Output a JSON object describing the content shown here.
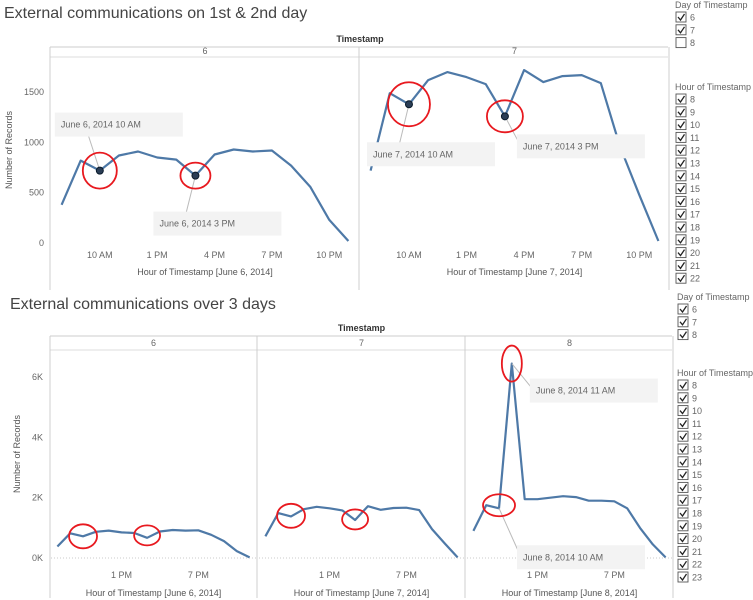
{
  "chart_data": [
    {
      "type": "line",
      "title": "External communications on 1st & 2nd day",
      "column_header": "Timestamp",
      "ylabel": "Number of Records",
      "ylim": [
        0,
        1850
      ],
      "yticks": [
        0,
        500,
        1000,
        1500
      ],
      "ytick_labels": [
        "0",
        "500",
        "1000",
        "1500"
      ],
      "panels": [
        {
          "label": "6",
          "xlabel": "Hour of Timestamp [June 6, 2014]",
          "x": [
            8,
            9,
            10,
            11,
            12,
            13,
            14,
            15,
            16,
            17,
            18,
            19,
            20,
            21,
            22,
            23
          ],
          "values": [
            380,
            820,
            720,
            870,
            910,
            850,
            830,
            670,
            880,
            930,
            910,
            920,
            770,
            560,
            230,
            20
          ],
          "xticks": [
            10,
            13,
            16,
            19,
            22
          ],
          "xtick_labels": [
            "10 AM",
            "1 PM",
            "4 PM",
            "7 PM",
            "10 PM"
          ],
          "annotations": [
            {
              "text": "June 6, 2014 10 AM",
              "x": 10,
              "y": 720
            },
            {
              "text": "June 6, 2014 3 PM",
              "x": 15,
              "y": 670
            }
          ]
        },
        {
          "label": "7",
          "xlabel": "Hour of Timestamp [June 7, 2014]",
          "x": [
            8,
            9,
            10,
            11,
            12,
            13,
            14,
            15,
            16,
            17,
            18,
            19,
            20,
            21,
            22,
            23
          ],
          "values": [
            720,
            1490,
            1380,
            1620,
            1700,
            1650,
            1580,
            1260,
            1720,
            1600,
            1660,
            1670,
            1590,
            960,
            480,
            20
          ],
          "xticks": [
            10,
            13,
            16,
            19,
            22
          ],
          "xtick_labels": [
            "10 AM",
            "1 PM",
            "4 PM",
            "7 PM",
            "10 PM"
          ],
          "annotations": [
            {
              "text": "June 7, 2014 10 AM",
              "x": 10,
              "y": 1380
            },
            {
              "text": "June 7, 2014 3 PM",
              "x": 15,
              "y": 1260
            }
          ]
        }
      ],
      "filters": [
        {
          "title": "Day of Timestamp",
          "items": [
            {
              "label": "6",
              "checked": true
            },
            {
              "label": "7",
              "checked": true
            },
            {
              "label": "8",
              "checked": false
            }
          ]
        },
        {
          "title": "Hour of Timestamp",
          "items": [
            {
              "label": "8",
              "checked": true
            },
            {
              "label": "9",
              "checked": true
            },
            {
              "label": "10",
              "checked": true
            },
            {
              "label": "11",
              "checked": true
            },
            {
              "label": "12",
              "checked": true
            },
            {
              "label": "13",
              "checked": true
            },
            {
              "label": "14",
              "checked": true
            },
            {
              "label": "15",
              "checked": true
            },
            {
              "label": "16",
              "checked": true
            },
            {
              "label": "17",
              "checked": true
            },
            {
              "label": "18",
              "checked": true
            },
            {
              "label": "19",
              "checked": true
            },
            {
              "label": "20",
              "checked": true
            },
            {
              "label": "21",
              "checked": true
            },
            {
              "label": "22",
              "checked": true
            }
          ]
        }
      ]
    },
    {
      "type": "line",
      "title": "External communications over 3 days",
      "column_header": "Timestamp",
      "ylabel": "Number of Records",
      "ylim": [
        0,
        6900
      ],
      "yticks": [
        0,
        2000,
        4000,
        6000
      ],
      "ytick_labels": [
        "0K",
        "2K",
        "4K",
        "6K"
      ],
      "panels": [
        {
          "label": "6",
          "xlabel": "Hour of Timestamp [June 6, 2014]",
          "x": [
            8,
            9,
            10,
            11,
            12,
            13,
            14,
            15,
            16,
            17,
            18,
            19,
            20,
            21,
            22,
            23
          ],
          "values": [
            380,
            820,
            720,
            870,
            910,
            850,
            830,
            670,
            880,
            930,
            910,
            920,
            770,
            560,
            230,
            20
          ],
          "xticks": [
            13,
            19
          ],
          "xtick_labels": [
            "1 PM",
            "7 PM"
          ],
          "annotations": []
        },
        {
          "label": "7",
          "xlabel": "Hour of Timestamp [June 7, 2014]",
          "x": [
            8,
            9,
            10,
            11,
            12,
            13,
            14,
            15,
            16,
            17,
            18,
            19,
            20,
            21,
            22,
            23
          ],
          "values": [
            720,
            1490,
            1380,
            1620,
            1700,
            1650,
            1580,
            1260,
            1720,
            1600,
            1660,
            1670,
            1590,
            960,
            480,
            20
          ],
          "xticks": [
            13,
            19
          ],
          "xtick_labels": [
            "1 PM",
            "7 PM"
          ],
          "annotations": []
        },
        {
          "label": "8",
          "xlabel": "Hour of Timestamp [June 8, 2014]",
          "x": [
            8,
            9,
            10,
            11,
            12,
            13,
            14,
            15,
            16,
            17,
            18,
            19,
            20,
            21,
            22,
            23
          ],
          "values": [
            900,
            1750,
            1650,
            6450,
            1950,
            1950,
            2000,
            2050,
            2020,
            1900,
            1900,
            1880,
            1650,
            1000,
            450,
            20
          ],
          "xticks": [
            13,
            19
          ],
          "xtick_labels": [
            "1 PM",
            "7 PM"
          ],
          "annotations": [
            {
              "text": "June 8, 2014 11 AM",
              "x": 11,
              "y": 6450
            },
            {
              "text": "June 8, 2014 10 AM",
              "x": 10,
              "y": 1650
            }
          ]
        }
      ],
      "filters": [
        {
          "title": "Day of Timestamp",
          "items": [
            {
              "label": "6",
              "checked": true
            },
            {
              "label": "7",
              "checked": true
            },
            {
              "label": "8",
              "checked": true
            }
          ]
        },
        {
          "title": "Hour of Timestamp",
          "items": [
            {
              "label": "8",
              "checked": true
            },
            {
              "label": "9",
              "checked": true
            },
            {
              "label": "10",
              "checked": true
            },
            {
              "label": "11",
              "checked": true
            },
            {
              "label": "12",
              "checked": true
            },
            {
              "label": "13",
              "checked": true
            },
            {
              "label": "14",
              "checked": true
            },
            {
              "label": "15",
              "checked": true
            },
            {
              "label": "16",
              "checked": true
            },
            {
              "label": "17",
              "checked": true
            },
            {
              "label": "18",
              "checked": true
            },
            {
              "label": "19",
              "checked": true
            },
            {
              "label": "20",
              "checked": true
            },
            {
              "label": "21",
              "checked": true
            },
            {
              "label": "22",
              "checked": true
            },
            {
              "label": "23",
              "checked": true
            }
          ]
        }
      ]
    }
  ],
  "colors": {
    "line": "#4e79a7",
    "highlight_circle": "#e8191f",
    "grid": "#d8d8d8"
  }
}
